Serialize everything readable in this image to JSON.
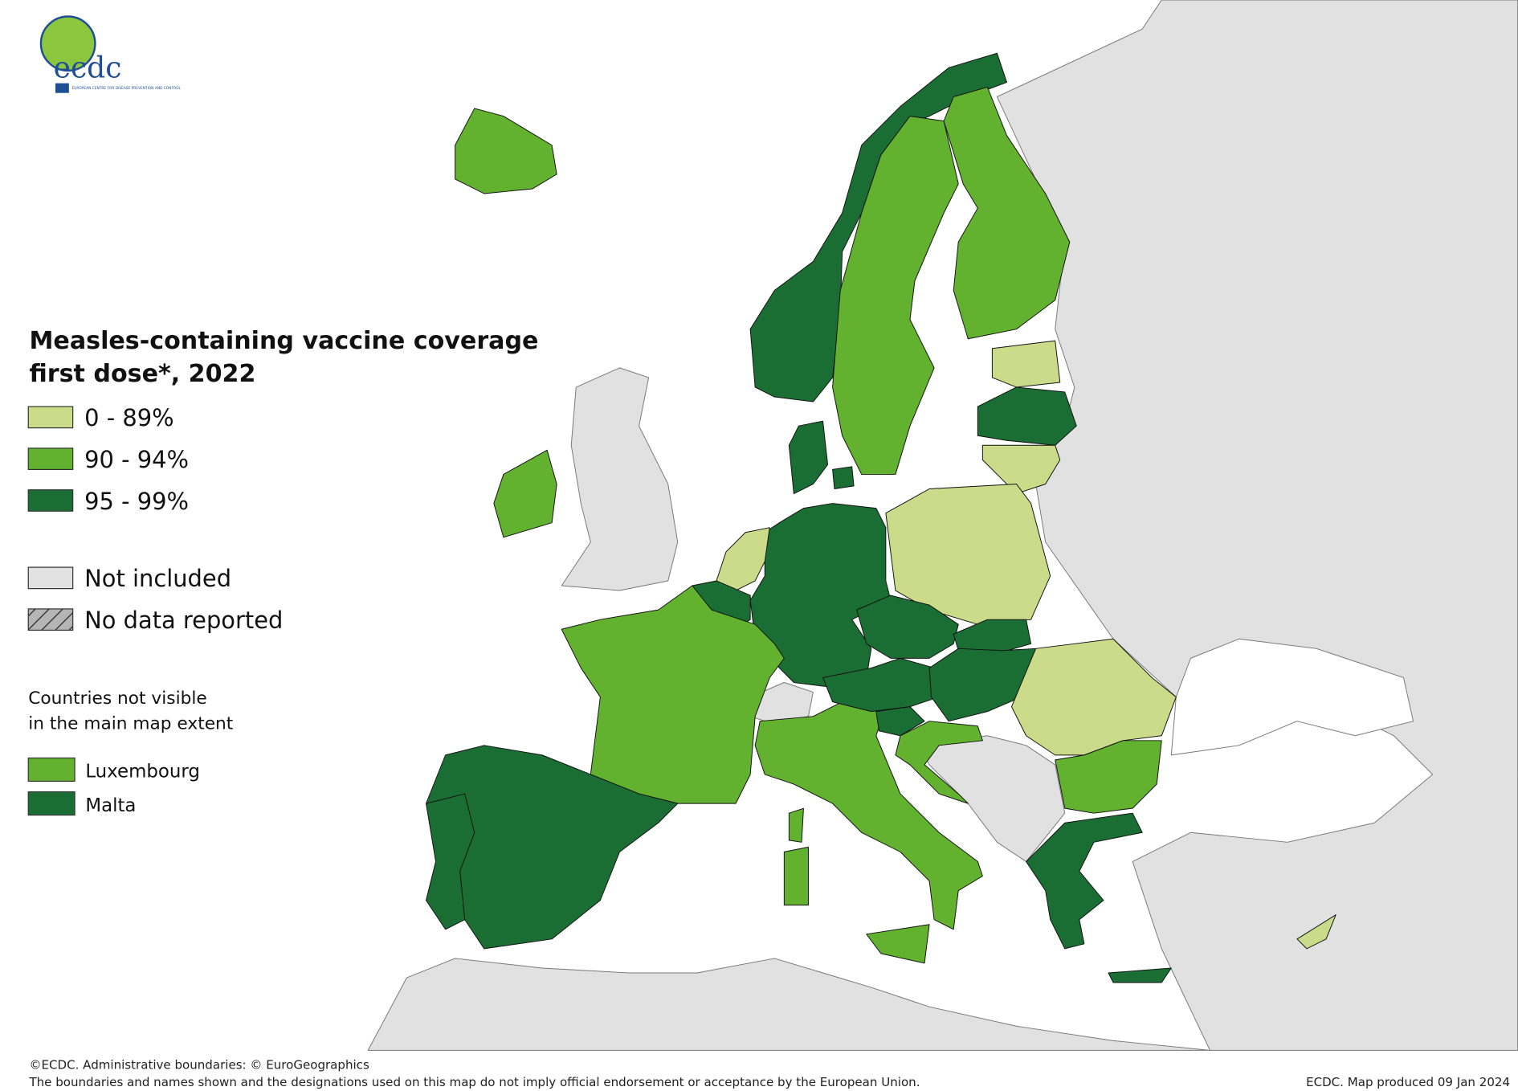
{
  "logo": {
    "name": "ecdc",
    "subtitle": "EUROPEAN CENTRE FOR DISEASE PREVENTION AND CONTROL"
  },
  "title": [
    "Measles-containing vaccine coverage",
    "first dose*, 2022"
  ],
  "legend": {
    "items": [
      {
        "label": "0 - 89%",
        "color": "#ccdb8a"
      },
      {
        "label": "90 - 94%",
        "color": "#63b22f"
      },
      {
        "label": "95 - 99%",
        "color": "#1b6e33"
      },
      {
        "label": "Not included",
        "color": "#e1e1e1"
      },
      {
        "label": "No data reported",
        "color": "#b5b5b5"
      }
    ]
  },
  "inset": {
    "heading": [
      "Countries not visible",
      "in the main map extent"
    ],
    "items": [
      {
        "label": "Luxembourg",
        "color": "#63b22f"
      },
      {
        "label": "Malta",
        "color": "#1b6e33"
      }
    ]
  },
  "footer": {
    "lines": [
      "©ECDC. Administrative boundaries: © EuroGeographics",
      "The boundaries and names shown and the designations used on this map do not imply official endorsement or acceptance by the European Union."
    ],
    "credit": "ECDC. Map produced 09 Jan 2024"
  }
}
